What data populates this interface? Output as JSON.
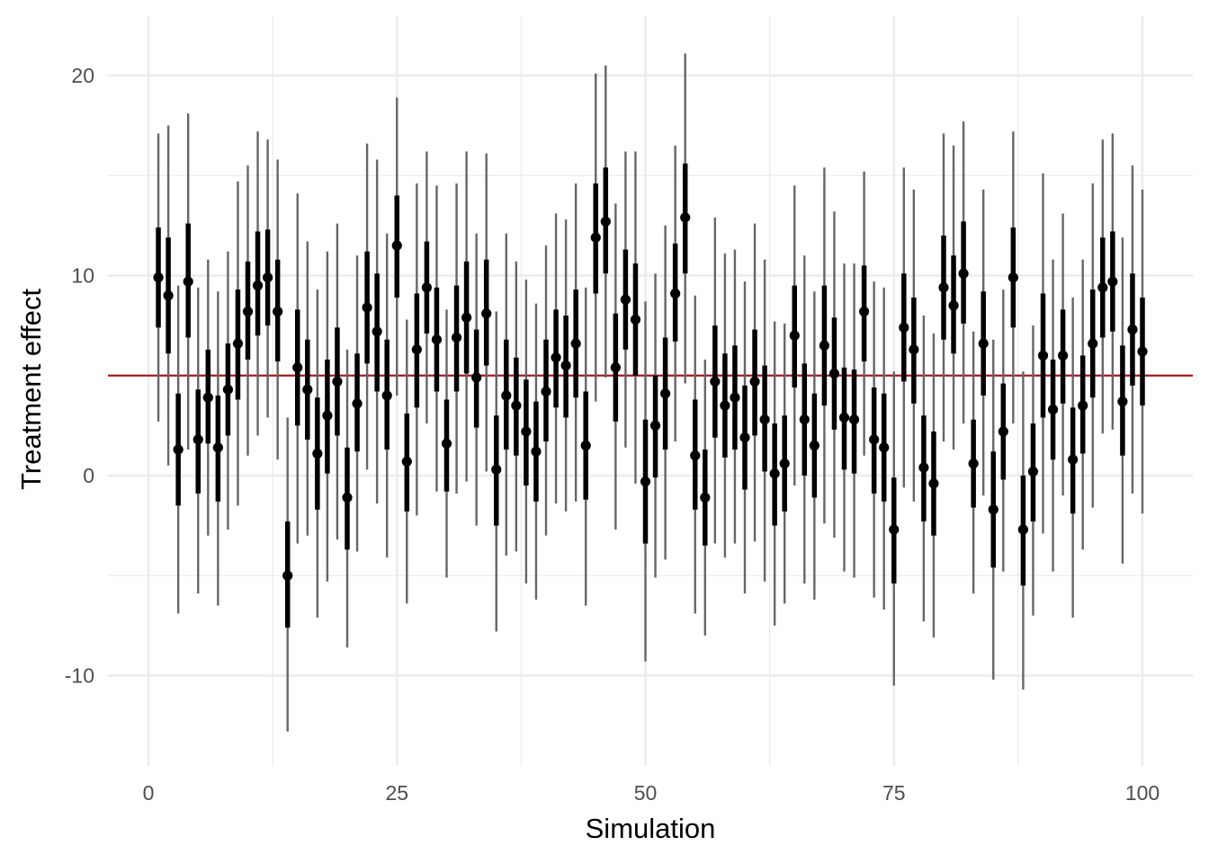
{
  "chart_data": {
    "type": "scatter",
    "xlabel": "Simulation",
    "ylabel": "Treatment effect",
    "xlim": [
      -2,
      105
    ],
    "ylim": [
      -14.5,
      23
    ],
    "x_ticks": [
      0,
      25,
      50,
      75,
      100
    ],
    "y_ticks": [
      -10,
      0,
      10,
      20
    ],
    "x_tick_labels": [
      "0",
      "25",
      "50",
      "75",
      "100"
    ],
    "y_tick_labels": [
      "-10",
      "0",
      "10",
      "20"
    ],
    "grid": true,
    "reference_line": {
      "y": 5,
      "color": "#9e1b20"
    },
    "colors": {
      "point": "#000000",
      "inner_interval": "#000000",
      "outer_interval": "#666666",
      "grid": "#ebebeb"
    },
    "points": [
      {
        "x": 1,
        "y": 9.9,
        "inner": [
          7.4,
          12.4
        ],
        "outer": [
          2.7,
          17.1
        ]
      },
      {
        "x": 2,
        "y": 9.0,
        "inner": [
          6.1,
          11.9
        ],
        "outer": [
          0.5,
          17.5
        ]
      },
      {
        "x": 3,
        "y": 1.3,
        "inner": [
          -1.5,
          4.1
        ],
        "outer": [
          -6.9,
          9.5
        ]
      },
      {
        "x": 4,
        "y": 9.7,
        "inner": [
          6.9,
          12.6
        ],
        "outer": [
          1.3,
          18.1
        ]
      },
      {
        "x": 5,
        "y": 1.8,
        "inner": [
          -0.9,
          4.3
        ],
        "outer": [
          -5.9,
          9.4
        ]
      },
      {
        "x": 6,
        "y": 3.9,
        "inner": [
          1.6,
          6.3
        ],
        "outer": [
          -3.0,
          10.8
        ]
      },
      {
        "x": 7,
        "y": 1.4,
        "inner": [
          -1.3,
          4.0
        ],
        "outer": [
          -6.5,
          9.2
        ]
      },
      {
        "x": 8,
        "y": 4.3,
        "inner": [
          2.0,
          6.6
        ],
        "outer": [
          -2.7,
          11.2
        ]
      },
      {
        "x": 9,
        "y": 6.6,
        "inner": [
          3.8,
          9.3
        ],
        "outer": [
          -1.5,
          14.7
        ]
      },
      {
        "x": 10,
        "y": 8.2,
        "inner": [
          5.8,
          10.7
        ],
        "outer": [
          1.0,
          15.5
        ]
      },
      {
        "x": 11,
        "y": 9.5,
        "inner": [
          7.0,
          12.2
        ],
        "outer": [
          2.0,
          17.2
        ]
      },
      {
        "x": 12,
        "y": 9.9,
        "inner": [
          7.5,
          12.3
        ],
        "outer": [
          2.9,
          16.8
        ]
      },
      {
        "x": 13,
        "y": 8.2,
        "inner": [
          5.7,
          10.8
        ],
        "outer": [
          0.8,
          15.8
        ]
      },
      {
        "x": 14,
        "y": -5.0,
        "inner": [
          -7.6,
          -2.3
        ],
        "outer": [
          -12.8,
          2.9
        ]
      },
      {
        "x": 15,
        "y": 5.4,
        "inner": [
          2.5,
          8.3
        ],
        "outer": [
          -3.4,
          14.1
        ]
      },
      {
        "x": 16,
        "y": 4.3,
        "inner": [
          1.8,
          6.8
        ],
        "outer": [
          -3.0,
          11.7
        ]
      },
      {
        "x": 17,
        "y": 1.1,
        "inner": [
          -1.7,
          3.9
        ],
        "outer": [
          -7.1,
          9.3
        ]
      },
      {
        "x": 18,
        "y": 3.0,
        "inner": [
          0.1,
          5.8
        ],
        "outer": [
          -5.3,
          11.2
        ]
      },
      {
        "x": 19,
        "y": 4.7,
        "inner": [
          2.0,
          7.4
        ],
        "outer": [
          -3.2,
          12.6
        ]
      },
      {
        "x": 20,
        "y": -1.1,
        "inner": [
          -3.7,
          1.4
        ],
        "outer": [
          -8.6,
          6.3
        ]
      },
      {
        "x": 21,
        "y": 3.6,
        "inner": [
          1.2,
          6.1
        ],
        "outer": [
          -3.8,
          11.0
        ]
      },
      {
        "x": 22,
        "y": 8.4,
        "inner": [
          5.6,
          11.2
        ],
        "outer": [
          0.3,
          16.6
        ]
      },
      {
        "x": 23,
        "y": 7.2,
        "inner": [
          4.2,
          10.1
        ],
        "outer": [
          -1.4,
          15.8
        ]
      },
      {
        "x": 24,
        "y": 4.0,
        "inner": [
          1.3,
          6.8
        ],
        "outer": [
          -4.1,
          12.1
        ]
      },
      {
        "x": 25,
        "y": 11.5,
        "inner": [
          8.9,
          14.0
        ],
        "outer": [
          4.0,
          18.9
        ]
      },
      {
        "x": 26,
        "y": 0.7,
        "inner": [
          -1.8,
          3.1
        ],
        "outer": [
          -6.4,
          7.8
        ]
      },
      {
        "x": 27,
        "y": 6.3,
        "inner": [
          3.4,
          9.1
        ],
        "outer": [
          -2.0,
          14.6
        ]
      },
      {
        "x": 28,
        "y": 9.4,
        "inner": [
          7.1,
          11.7
        ],
        "outer": [
          2.6,
          16.2
        ]
      },
      {
        "x": 29,
        "y": 6.8,
        "inner": [
          4.2,
          9.4
        ],
        "outer": [
          -0.8,
          14.5
        ]
      },
      {
        "x": 30,
        "y": 1.6,
        "inner": [
          -0.8,
          3.8
        ],
        "outer": [
          -5.1,
          8.3
        ]
      },
      {
        "x": 31,
        "y": 6.9,
        "inner": [
          4.2,
          9.5
        ],
        "outer": [
          -0.9,
          14.6
        ]
      },
      {
        "x": 32,
        "y": 7.9,
        "inner": [
          5.1,
          10.7
        ],
        "outer": [
          -0.3,
          16.2
        ]
      },
      {
        "x": 33,
        "y": 4.9,
        "inner": [
          2.4,
          7.3
        ],
        "outer": [
          -2.5,
          12.1
        ]
      },
      {
        "x": 34,
        "y": 8.1,
        "inner": [
          5.5,
          10.8
        ],
        "outer": [
          0.2,
          16.1
        ]
      },
      {
        "x": 35,
        "y": 0.3,
        "inner": [
          -2.5,
          3.0
        ],
        "outer": [
          -7.8,
          8.2
        ]
      },
      {
        "x": 36,
        "y": 4.0,
        "inner": [
          1.3,
          6.8
        ],
        "outer": [
          -4.0,
          12.1
        ]
      },
      {
        "x": 37,
        "y": 3.5,
        "inner": [
          1.0,
          5.9
        ],
        "outer": [
          -3.8,
          10.7
        ]
      },
      {
        "x": 38,
        "y": 2.2,
        "inner": [
          -0.5,
          4.8
        ],
        "outer": [
          -5.4,
          9.8
        ]
      },
      {
        "x": 39,
        "y": 1.2,
        "inner": [
          -1.3,
          3.7
        ],
        "outer": [
          -6.2,
          8.6
        ]
      },
      {
        "x": 40,
        "y": 4.2,
        "inner": [
          1.7,
          6.8
        ],
        "outer": [
          -3.0,
          11.5
        ]
      },
      {
        "x": 41,
        "y": 5.9,
        "inner": [
          3.4,
          8.3
        ],
        "outer": [
          -1.4,
          13.1
        ]
      },
      {
        "x": 42,
        "y": 5.5,
        "inner": [
          2.9,
          8.0
        ],
        "outer": [
          -1.8,
          12.8
        ]
      },
      {
        "x": 43,
        "y": 6.6,
        "inner": [
          3.9,
          9.3
        ],
        "outer": [
          -1.3,
          14.6
        ]
      },
      {
        "x": 44,
        "y": 1.5,
        "inner": [
          -1.2,
          4.2
        ],
        "outer": [
          -6.5,
          9.4
        ]
      },
      {
        "x": 45,
        "y": 11.9,
        "inner": [
          9.1,
          14.6
        ],
        "outer": [
          3.7,
          20.1
        ]
      },
      {
        "x": 46,
        "y": 12.7,
        "inner": [
          10.1,
          15.4
        ],
        "outer": [
          4.9,
          20.5
        ]
      },
      {
        "x": 47,
        "y": 5.4,
        "inner": [
          2.7,
          8.1
        ],
        "outer": [
          -2.7,
          13.6
        ]
      },
      {
        "x": 48,
        "y": 8.8,
        "inner": [
          6.3,
          11.3
        ],
        "outer": [
          1.4,
          16.2
        ]
      },
      {
        "x": 49,
        "y": 7.8,
        "inner": [
          5.0,
          10.6
        ],
        "outer": [
          -0.4,
          16.2
        ]
      },
      {
        "x": 50,
        "y": -0.3,
        "inner": [
          -3.4,
          2.8
        ],
        "outer": [
          -9.3,
          8.7
        ]
      },
      {
        "x": 51,
        "y": 2.5,
        "inner": [
          -0.1,
          5.0
        ],
        "outer": [
          -5.1,
          10.1
        ]
      },
      {
        "x": 52,
        "y": 4.1,
        "inner": [
          1.3,
          6.9
        ],
        "outer": [
          -4.2,
          12.5
        ]
      },
      {
        "x": 53,
        "y": 9.1,
        "inner": [
          6.7,
          11.6
        ],
        "outer": [
          1.7,
          16.5
        ]
      },
      {
        "x": 54,
        "y": 12.9,
        "inner": [
          10.1,
          15.6
        ],
        "outer": [
          4.6,
          21.1
        ]
      },
      {
        "x": 55,
        "y": 1.0,
        "inner": [
          -1.7,
          3.8
        ],
        "outer": [
          -6.9,
          9.0
        ]
      },
      {
        "x": 56,
        "y": -1.1,
        "inner": [
          -3.5,
          1.3
        ],
        "outer": [
          -8.0,
          5.8
        ]
      },
      {
        "x": 57,
        "y": 4.7,
        "inner": [
          1.9,
          7.5
        ],
        "outer": [
          -3.4,
          12.9
        ]
      },
      {
        "x": 58,
        "y": 3.5,
        "inner": [
          0.9,
          6.1
        ],
        "outer": [
          -4.1,
          11.1
        ]
      },
      {
        "x": 59,
        "y": 3.9,
        "inner": [
          1.3,
          6.5
        ],
        "outer": [
          -3.4,
          11.3
        ]
      },
      {
        "x": 60,
        "y": 1.9,
        "inner": [
          -0.7,
          4.5
        ],
        "outer": [
          -5.9,
          9.7
        ]
      },
      {
        "x": 61,
        "y": 4.7,
        "inner": [
          2.0,
          7.3
        ],
        "outer": [
          -3.3,
          12.6
        ]
      },
      {
        "x": 62,
        "y": 2.8,
        "inner": [
          0.2,
          5.5
        ],
        "outer": [
          -5.3,
          10.8
        ]
      },
      {
        "x": 63,
        "y": 0.1,
        "inner": [
          -2.5,
          2.6
        ],
        "outer": [
          -7.5,
          7.7
        ]
      },
      {
        "x": 64,
        "y": 0.6,
        "inner": [
          -1.8,
          3.0
        ],
        "outer": [
          -6.4,
          7.6
        ]
      },
      {
        "x": 65,
        "y": 7.0,
        "inner": [
          4.4,
          9.5
        ],
        "outer": [
          -0.5,
          14.5
        ]
      },
      {
        "x": 66,
        "y": 2.8,
        "inner": [
          0.0,
          5.6
        ],
        "outer": [
          -5.4,
          11.0
        ]
      },
      {
        "x": 67,
        "y": 1.5,
        "inner": [
          -1.1,
          4.1
        ],
        "outer": [
          -6.2,
          9.2
        ]
      },
      {
        "x": 68,
        "y": 6.5,
        "inner": [
          3.5,
          9.5
        ],
        "outer": [
          -2.4,
          15.4
        ]
      },
      {
        "x": 69,
        "y": 5.1,
        "inner": [
          2.3,
          7.9
        ],
        "outer": [
          -3.1,
          13.2
        ]
      },
      {
        "x": 70,
        "y": 2.9,
        "inner": [
          0.3,
          5.4
        ],
        "outer": [
          -4.8,
          10.6
        ]
      },
      {
        "x": 71,
        "y": 2.8,
        "inner": [
          0.1,
          5.3
        ],
        "outer": [
          -5.1,
          10.6
        ]
      },
      {
        "x": 72,
        "y": 8.2,
        "inner": [
          5.7,
          10.5
        ],
        "outer": [
          1.0,
          15.2
        ]
      },
      {
        "x": 73,
        "y": 1.8,
        "inner": [
          -0.9,
          4.4
        ],
        "outer": [
          -6.1,
          9.7
        ]
      },
      {
        "x": 74,
        "y": 1.4,
        "inner": [
          -1.3,
          4.1
        ],
        "outer": [
          -6.7,
          9.4
        ]
      },
      {
        "x": 75,
        "y": -2.7,
        "inner": [
          -5.4,
          -0.1
        ],
        "outer": [
          -10.5,
          5.2
        ]
      },
      {
        "x": 76,
        "y": 7.4,
        "inner": [
          4.7,
          10.1
        ],
        "outer": [
          -0.6,
          15.4
        ]
      },
      {
        "x": 77,
        "y": 6.3,
        "inner": [
          3.6,
          8.9
        ],
        "outer": [
          -1.3,
          14.3
        ]
      },
      {
        "x": 78,
        "y": 0.4,
        "inner": [
          -2.3,
          3.0
        ],
        "outer": [
          -7.3,
          8.0
        ]
      },
      {
        "x": 79,
        "y": -0.4,
        "inner": [
          -3.0,
          2.2
        ],
        "outer": [
          -8.1,
          7.1
        ]
      },
      {
        "x": 80,
        "y": 9.4,
        "inner": [
          6.8,
          12.0
        ],
        "outer": [
          1.7,
          17.1
        ]
      },
      {
        "x": 81,
        "y": 8.5,
        "inner": [
          6.1,
          11.0
        ],
        "outer": [
          1.3,
          16.5
        ]
      },
      {
        "x": 82,
        "y": 10.1,
        "inner": [
          7.6,
          12.7
        ],
        "outer": [
          2.6,
          17.7
        ]
      },
      {
        "x": 83,
        "y": 0.6,
        "inner": [
          -1.6,
          2.8
        ],
        "outer": [
          -5.9,
          7.2
        ]
      },
      {
        "x": 84,
        "y": 6.6,
        "inner": [
          4.0,
          9.2
        ],
        "outer": [
          -1.0,
          14.3
        ]
      },
      {
        "x": 85,
        "y": -1.7,
        "inner": [
          -4.6,
          1.2
        ],
        "outer": [
          -10.2,
          6.8
        ]
      },
      {
        "x": 86,
        "y": 2.2,
        "inner": [
          -0.2,
          4.6
        ],
        "outer": [
          -4.8,
          9.3
        ]
      },
      {
        "x": 87,
        "y": 9.9,
        "inner": [
          7.4,
          12.4
        ],
        "outer": [
          2.6,
          17.2
        ]
      },
      {
        "x": 88,
        "y": -2.7,
        "inner": [
          -5.5,
          0.0
        ],
        "outer": [
          -10.7,
          5.2
        ]
      },
      {
        "x": 89,
        "y": 0.2,
        "inner": [
          -2.3,
          2.6
        ],
        "outer": [
          -7.0,
          7.5
        ]
      },
      {
        "x": 90,
        "y": 6.0,
        "inner": [
          2.9,
          9.1
        ],
        "outer": [
          -2.9,
          15.1
        ]
      },
      {
        "x": 91,
        "y": 3.3,
        "inner": [
          0.8,
          5.8
        ],
        "outer": [
          -4.8,
          10.8
        ]
      },
      {
        "x": 92,
        "y": 6.0,
        "inner": [
          3.6,
          8.3
        ],
        "outer": [
          -1.0,
          13.1
        ]
      },
      {
        "x": 93,
        "y": 0.8,
        "inner": [
          -1.9,
          3.4
        ],
        "outer": [
          -7.1,
          8.9
        ]
      },
      {
        "x": 94,
        "y": 3.5,
        "inner": [
          1.1,
          6.0
        ],
        "outer": [
          -3.7,
          10.8
        ]
      },
      {
        "x": 95,
        "y": 6.6,
        "inner": [
          3.9,
          9.3
        ],
        "outer": [
          -1.6,
          14.6
        ]
      },
      {
        "x": 96,
        "y": 9.4,
        "inner": [
          6.9,
          11.9
        ],
        "outer": [
          2.1,
          16.8
        ]
      },
      {
        "x": 97,
        "y": 9.7,
        "inner": [
          7.2,
          12.2
        ],
        "outer": [
          2.3,
          17.1
        ]
      },
      {
        "x": 98,
        "y": 3.7,
        "inner": [
          1.0,
          6.5
        ],
        "outer": [
          -4.4,
          11.9
        ]
      },
      {
        "x": 99,
        "y": 7.3,
        "inner": [
          4.5,
          10.1
        ],
        "outer": [
          -0.9,
          15.5
        ]
      },
      {
        "x": 100,
        "y": 6.2,
        "inner": [
          3.5,
          8.9
        ],
        "outer": [
          -1.9,
          14.3
        ]
      }
    ]
  }
}
